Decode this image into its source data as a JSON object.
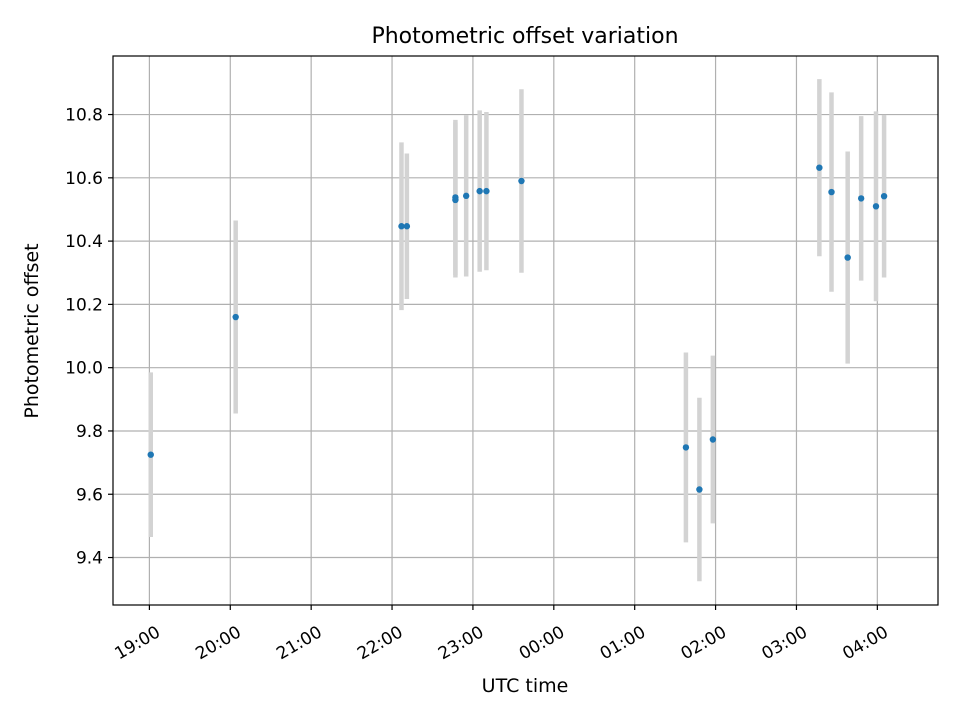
{
  "chart_data": {
    "type": "scatter",
    "title": "Photometric offset variation",
    "xlabel": "UTC time",
    "ylabel": "Photometric offset",
    "x_format": "HH:MM",
    "xlim": [
      "2000-01-01T18:33",
      "2000-01-02T04:45"
    ],
    "ylim": [
      9.25,
      10.985
    ],
    "xticks": [
      {
        "t": "2000-01-01T19:00",
        "label": "19:00"
      },
      {
        "t": "2000-01-01T20:00",
        "label": "20:00"
      },
      {
        "t": "2000-01-01T21:00",
        "label": "21:00"
      },
      {
        "t": "2000-01-01T22:00",
        "label": "22:00"
      },
      {
        "t": "2000-01-01T23:00",
        "label": "23:00"
      },
      {
        "t": "2000-01-02T00:00",
        "label": "00:00"
      },
      {
        "t": "2000-01-02T01:00",
        "label": "01:00"
      },
      {
        "t": "2000-01-02T02:00",
        "label": "02:00"
      },
      {
        "t": "2000-01-02T03:00",
        "label": "03:00"
      },
      {
        "t": "2000-01-02T04:00",
        "label": "04:00"
      }
    ],
    "yticks": [
      9.4,
      9.6,
      9.8,
      10.0,
      10.2,
      10.4,
      10.6,
      10.8
    ],
    "grid": true,
    "colors": {
      "points": "#1f77b4",
      "errorbars": "#d3d3d3",
      "grid": "#b0b0b0"
    },
    "points": [
      {
        "t": "2000-01-01T19:01",
        "y": 9.725,
        "err": 0.26
      },
      {
        "t": "2000-01-01T20:04",
        "y": 10.16,
        "err": 0.305
      },
      {
        "t": "2000-01-01T22:07",
        "y": 10.447,
        "err": 0.265
      },
      {
        "t": "2000-01-01T22:11",
        "y": 10.447,
        "err": 0.23
      },
      {
        "t": "2000-01-01T22:47",
        "y": 10.53,
        "err": 0.245
      },
      {
        "t": "2000-01-01T22:47",
        "y": 10.538,
        "err": 0.245
      },
      {
        "t": "2000-01-01T22:55",
        "y": 10.543,
        "err": 0.255
      },
      {
        "t": "2000-01-01T23:05",
        "y": 10.558,
        "err": 0.255
      },
      {
        "t": "2000-01-01T23:10",
        "y": 10.558,
        "err": 0.25
      },
      {
        "t": "2000-01-01T23:36",
        "y": 10.59,
        "err": 0.29
      },
      {
        "t": "2000-01-02T01:38",
        "y": 9.748,
        "err": 0.3
      },
      {
        "t": "2000-01-02T01:48",
        "y": 9.615,
        "err": 0.29
      },
      {
        "t": "2000-01-02T01:58",
        "y": 9.773,
        "err": 0.265
      },
      {
        "t": "2000-01-02T03:17",
        "y": 10.632,
        "err": 0.28
      },
      {
        "t": "2000-01-02T03:26",
        "y": 10.555,
        "err": 0.315
      },
      {
        "t": "2000-01-02T03:38",
        "y": 10.348,
        "err": 0.335
      },
      {
        "t": "2000-01-02T03:48",
        "y": 10.535,
        "err": 0.26
      },
      {
        "t": "2000-01-02T03:59",
        "y": 10.51,
        "err": 0.3
      },
      {
        "t": "2000-01-02T04:05",
        "y": 10.542,
        "err": 0.257
      }
    ]
  }
}
